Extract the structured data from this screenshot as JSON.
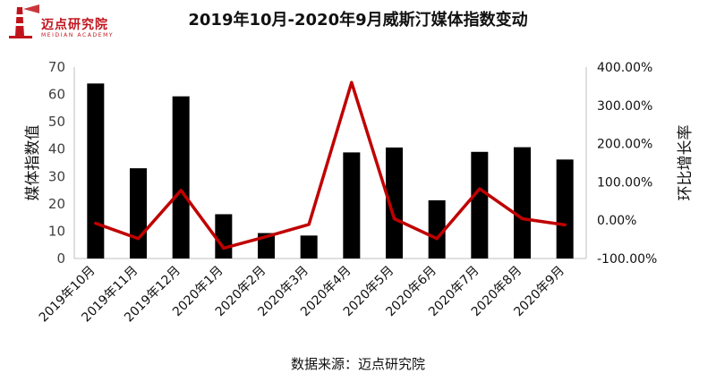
{
  "logo": {
    "name": "迈点研究院",
    "sub": "MEIDIAN ACADEMY"
  },
  "chart_data": {
    "type": "bar",
    "title": "2019年10月-2020年9月威斯汀媒体指数变动",
    "categories": [
      "2019年10月",
      "2019年11月",
      "2019年12月",
      "2020年1月",
      "2020年2月",
      "2020年3月",
      "2020年4月",
      "2020年5月",
      "2020年6月",
      "2020年7月",
      "2020年8月",
      "2020年9月"
    ],
    "series": [
      {
        "type": "bar",
        "axis": "left",
        "color": "#000000",
        "values": [
          64.0,
          33.0,
          59.3,
          16.2,
          9.3,
          8.4,
          38.8,
          40.6,
          21.3,
          39.0,
          40.7,
          36.2
        ]
      },
      {
        "type": "line",
        "axis": "right",
        "color": "#c00000",
        "values": [
          -0.08,
          -0.48,
          0.78,
          -0.73,
          -0.43,
          -0.11,
          3.6,
          0.04,
          -0.48,
          0.82,
          0.04,
          -0.12
        ]
      }
    ],
    "ylabel": "媒体指数值",
    "y2label": "环比增长率",
    "ylim": [
      0,
      70
    ],
    "yticks": [
      0,
      10,
      20,
      30,
      40,
      50,
      60,
      70
    ],
    "y2lim": [
      -1,
      4
    ],
    "y2ticks": [
      "-100.00%",
      "0.00%",
      "100.00%",
      "200.00%",
      "300.00%",
      "400.00%"
    ],
    "grid": false,
    "legend": "none"
  },
  "source_note": "数据来源：迈点研究院"
}
